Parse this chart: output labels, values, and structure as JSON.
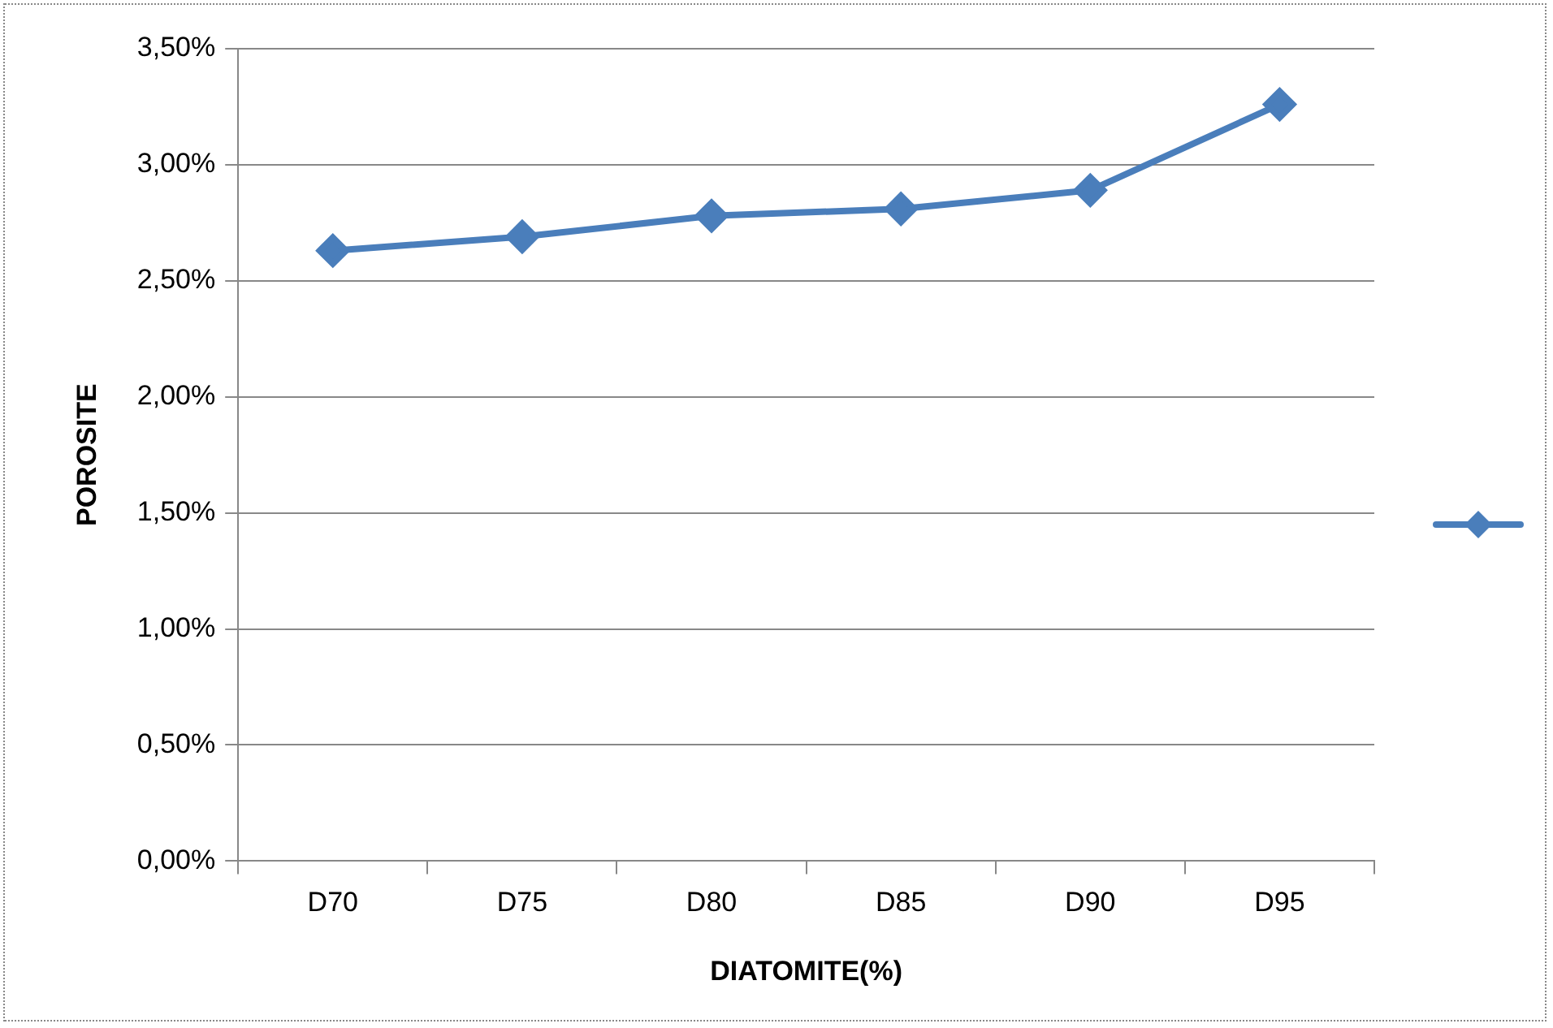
{
  "chart_data": {
    "type": "line",
    "xlabel": "DIATOMITE(%)",
    "ylabel": "POROSITE",
    "categories": [
      "D70",
      "D75",
      "D80",
      "D85",
      "D90",
      "D95"
    ],
    "series": [
      {
        "color": "#4a7ebb",
        "values": [
          2.63,
          2.69,
          2.78,
          2.81,
          2.89,
          3.26
        ]
      }
    ],
    "ylim": [
      0,
      3.5
    ],
    "yticks": [
      {
        "value": 0,
        "label": "0,00%"
      },
      {
        "value": 0.5,
        "label": "0,50%"
      },
      {
        "value": 1,
        "label": "1,00%"
      },
      {
        "value": 1.5,
        "label": "1,50%"
      },
      {
        "value": 2,
        "label": "2,00%"
      },
      {
        "value": 2.5,
        "label": "2,50%"
      },
      {
        "value": 3,
        "label": "3,00%"
      },
      {
        "value": 3.5,
        "label": "3,50%"
      }
    ],
    "grid": "y",
    "marker": "diamond",
    "line_style": "solid"
  }
}
